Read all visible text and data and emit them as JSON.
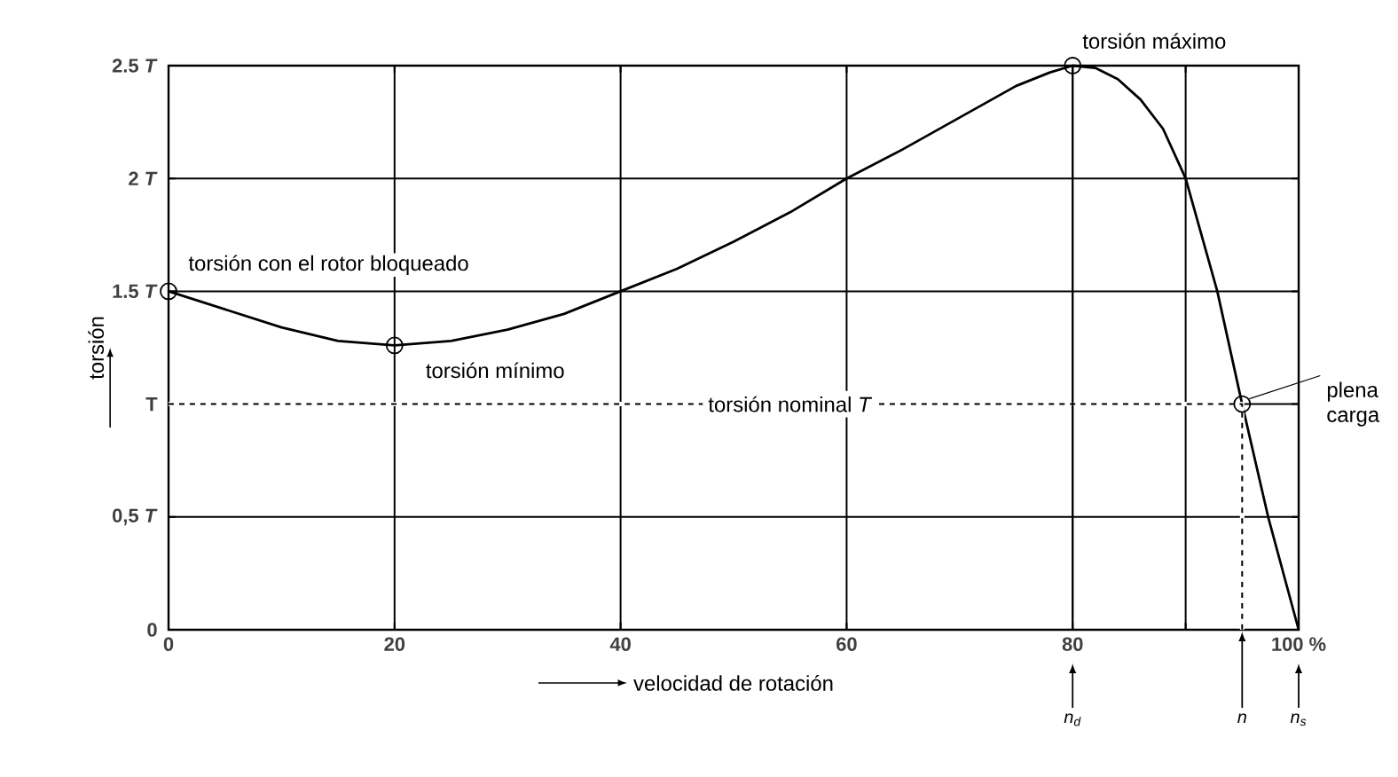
{
  "chart_data": {
    "type": "line",
    "xlabel": "velocidad de rotación",
    "ylabel": "torsión",
    "xlim": [
      0,
      100
    ],
    "ylim": [
      0,
      2.5
    ],
    "xticks": [
      0,
      20,
      40,
      60,
      80,
      {
        "value": 90,
        "label": null
      },
      {
        "value": 100,
        "label": "100 %"
      }
    ],
    "yticks": [
      0,
      {
        "value": 0.5,
        "label": "0,5 *T*"
      },
      {
        "value": 1,
        "label": "T"
      },
      {
        "value": 1.5,
        "label": "1.5 *T*"
      },
      {
        "value": 2,
        "label": "2 *T*"
      },
      {
        "value": 2.5,
        "label": "2.5 *T*"
      }
    ],
    "grid": true,
    "ref_lines": [
      {
        "axis": "x",
        "value": 80,
        "label": "n$_{d}$",
        "color": "#000000",
        "line_style": "solid"
      },
      {
        "axis": "x",
        "value": 100,
        "label": "n$_{s}$",
        "color": "#000000",
        "line_style": "solid"
      }
    ],
    "series": [
      {
        "color": "#000000",
        "marker": "none",
        "line_style": "solid",
        "x": [
          0,
          5,
          10,
          15,
          20,
          25,
          30,
          35,
          40,
          45,
          50,
          55,
          60,
          65,
          70,
          75,
          78,
          80,
          82,
          84,
          86,
          88,
          90,
          92.8,
          95,
          97.3,
          100
        ],
        "values": [
          1.5,
          1.42,
          1.34,
          1.28,
          1.26,
          1.28,
          1.33,
          1.4,
          1.5,
          1.6,
          1.72,
          1.85,
          2.0,
          2.13,
          2.27,
          2.41,
          2.47,
          2.5,
          2.49,
          2.44,
          2.35,
          2.22,
          2.0,
          1.5,
          1.0,
          0.5,
          0
        ]
      },
      {
        "color": "#000000",
        "marker": "none",
        "line_style": "dashed",
        "x": [
          0,
          95,
          95
        ],
        "values": [
          1,
          1,
          0
        ]
      },
      {
        "type": "scatter",
        "color": "#000000",
        "marker": "circle",
        "x": [
          0,
          20,
          80,
          95
        ],
        "values": [
          1.5,
          1.26,
          2.5,
          1
        ]
      }
    ],
    "annotations": [
      {
        "text": "torsión con el rotor bloqueado",
        "x": 0,
        "y": 1.5
      },
      {
        "text": "torsión mínimo",
        "x": 20,
        "y": 1.26
      },
      {
        "text": "torsión máximo",
        "x": 80,
        "y": 2.5
      },
      {
        "text": "torsión nominal *T*",
        "x": 55,
        "y": 1
      },
      {
        "text": "plena carga",
        "x": 95,
        "y": 1
      },
      {
        "text": "n",
        "x": 95,
        "y": 0
      }
    ]
  }
}
